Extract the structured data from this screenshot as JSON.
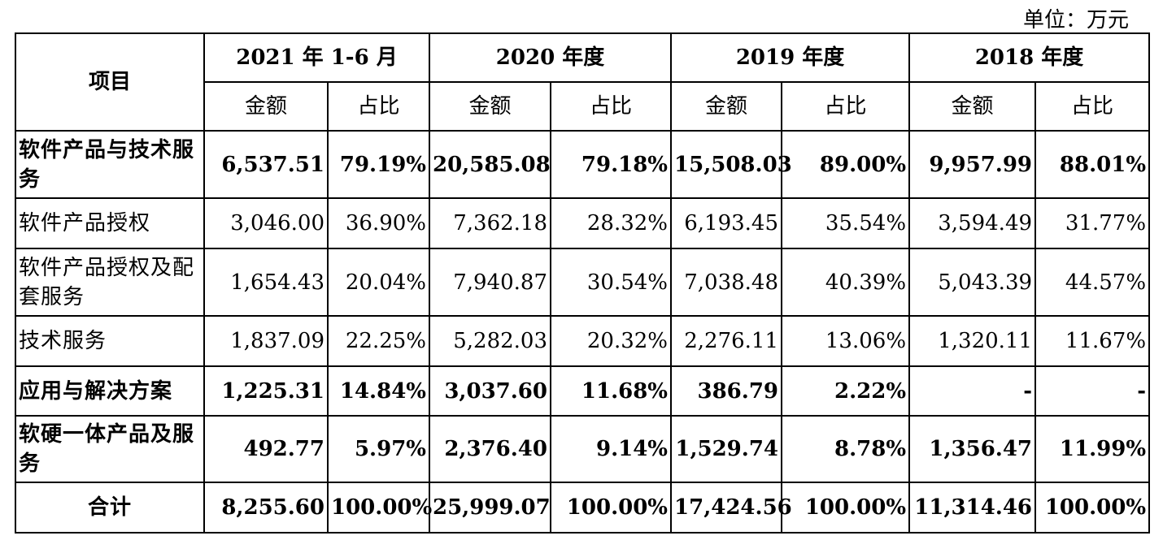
{
  "unit": "单位：万元",
  "table": {
    "header": {
      "item": "项目",
      "periods": [
        "2021 年 1-6 月",
        "2020 年度",
        "2019 年度",
        "2018 年度"
      ],
      "subheaders": [
        "金额",
        "占比",
        "金额",
        "占比",
        "金额",
        "占比",
        "金额",
        "占比"
      ]
    },
    "rows": [
      [
        "软件产品与技术服务",
        "6,537.51",
        "79.19%",
        "20,585.08",
        "79.18%",
        "15,508.03",
        "89.00%",
        "9,957.99",
        "88.01%"
      ],
      [
        "软件产品授权",
        "3,046.00",
        "36.90%",
        "7,362.18",
        "28.32%",
        "6,193.45",
        "35.54%",
        "3,594.49",
        "31.77%"
      ],
      [
        "软件产品授权及配套服务",
        "1,654.43",
        "20.04%",
        "7,940.87",
        "30.54%",
        "7,038.48",
        "40.39%",
        "5,043.39",
        "44.57%"
      ],
      [
        "技术服务",
        "1,837.09",
        "22.25%",
        "5,282.03",
        "20.32%",
        "2,276.11",
        "13.06%",
        "1,320.11",
        "11.67%"
      ],
      [
        "应用与解决方案",
        "1,225.31",
        "14.84%",
        "3,037.60",
        "11.68%",
        "386.79",
        "2.22%",
        "-",
        "-"
      ],
      [
        "软硬一体产品及服务",
        "492.77",
        "5.97%",
        "2,376.40",
        "9.14%",
        "1,529.74",
        "8.78%",
        "1,356.47",
        "11.99%"
      ],
      [
        "合计",
        "8,255.60",
        "100.00%",
        "25,999.07",
        "100.00%",
        "17,424.56",
        "100.00%",
        "11,314.46",
        "100.00%"
      ]
    ]
  }
}
